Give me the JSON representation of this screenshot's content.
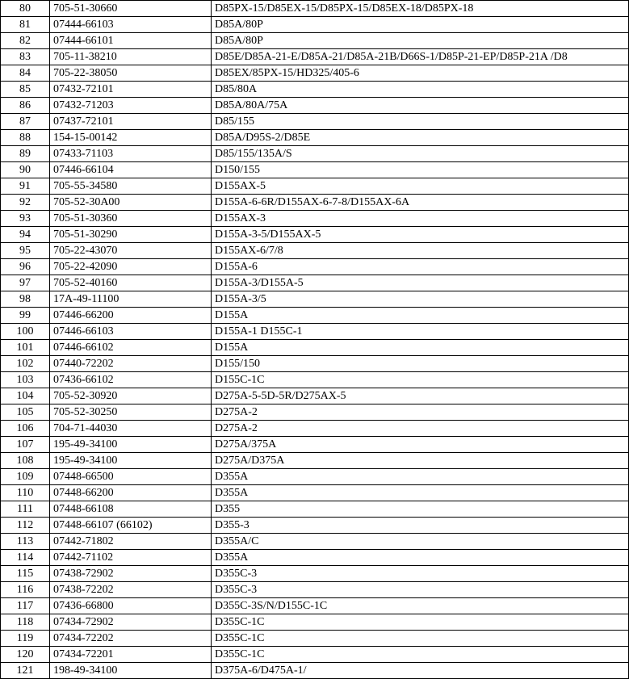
{
  "table": {
    "rows": [
      {
        "num": "80",
        "part": "705-51-30660",
        "model": "D85PX-15/D85EX-15/D85PX-15/D85EX-18/D85PX-18"
      },
      {
        "num": "81",
        "part": "07444-66103",
        "model": "D85A/80P"
      },
      {
        "num": "82",
        "part": "07444-66101",
        "model": "D85A/80P"
      },
      {
        "num": "83",
        "part": "705-11-38210",
        "model": "D85E/D85A-21-E/D85A-21/D85A-21B/D66S-1/D85P-21-EP/D85P-21A /D8"
      },
      {
        "num": "84",
        "part": "705-22-38050",
        "model": "D85EX/85PX-15/HD325/405-6"
      },
      {
        "num": "85",
        "part": "07432-72101",
        "model": "D85/80A"
      },
      {
        "num": "86",
        "part": "07432-71203",
        "model": "D85A/80A/75A"
      },
      {
        "num": "87",
        "part": "07437-72101",
        "model": "D85/155"
      },
      {
        "num": "88",
        "part": "154-15-00142",
        "model": "D85A/D95S-2/D85E"
      },
      {
        "num": "89",
        "part": "07433-71103",
        "model": "D85/155/135A/S"
      },
      {
        "num": "90",
        "part": "07446-66104",
        "model": "D150/155"
      },
      {
        "num": "91",
        "part": "705-55-34580",
        "model": "D155AX-5"
      },
      {
        "num": "92",
        "part": "705-52-30A00",
        "model": "D155A-6-6R/D155AX-6-7-8/D155AX-6A"
      },
      {
        "num": "93",
        "part": "705-51-30360",
        "model": "D155AX-3"
      },
      {
        "num": "94",
        "part": "705-51-30290",
        "model": "D155A-3-5/D155AX-5"
      },
      {
        "num": "95",
        "part": "705-22-43070",
        "model": "D155AX-6/7/8"
      },
      {
        "num": "96",
        "part": "705-22-42090",
        "model": "D155A-6"
      },
      {
        "num": "97",
        "part": "705-52-40160",
        "model": "D155A-3/D155A-5"
      },
      {
        "num": "98",
        "part": "17A-49-11100",
        "model": "D155A-3/5"
      },
      {
        "num": "99",
        "part": "07446-66200",
        "model": "D155A"
      },
      {
        "num": "100",
        "part": "07446-66103",
        "model": "D155A-1  D155C-1"
      },
      {
        "num": "101",
        "part": "07446-66102",
        "model": "D155A"
      },
      {
        "num": "102",
        "part": "07440-72202",
        "model": "D155/150"
      },
      {
        "num": "103",
        "part": "07436-66102",
        "model": "D155C-1C"
      },
      {
        "num": "104",
        "part": "705-52-30920",
        "model": "D275A-5-5D-5R/D275AX-5"
      },
      {
        "num": "105",
        "part": "705-52-30250",
        "model": "D275A-2"
      },
      {
        "num": "106",
        "part": "704-71-44030",
        "model": "D275A-2"
      },
      {
        "num": "107",
        "part": "195-49-34100",
        "model": "D275A/375A"
      },
      {
        "num": "108",
        "part": "195-49-34100",
        "model": "D275A/D375A"
      },
      {
        "num": "109",
        "part": "07448-66500",
        "model": "D355A"
      },
      {
        "num": "110",
        "part": "07448-66200",
        "model": "D355A"
      },
      {
        "num": "111",
        "part": "07448-66108",
        "model": "D355"
      },
      {
        "num": "112",
        "part": "07448-66107 (66102)",
        "model": "D355-3"
      },
      {
        "num": "113",
        "part": "07442-71802",
        "model": "D355A/C"
      },
      {
        "num": "114",
        "part": "07442-71102",
        "model": "D355A"
      },
      {
        "num": "115",
        "part": "07438-72902",
        "model": "D355C-3"
      },
      {
        "num": "116",
        "part": "07438-72202",
        "model": "D355C-3"
      },
      {
        "num": "117",
        "part": "07436-66800",
        "model": "D355C-3S/N/D155C-1C"
      },
      {
        "num": "118",
        "part": "07434-72902",
        "model": "D355C-1C"
      },
      {
        "num": "119",
        "part": "07434-72202",
        "model": "D355C-1C"
      },
      {
        "num": "120",
        "part": "07434-72201",
        "model": "D355C-1C"
      },
      {
        "num": "121",
        "part": "198-49-34100",
        "model": "D375A-6/D475A-1/"
      }
    ]
  }
}
